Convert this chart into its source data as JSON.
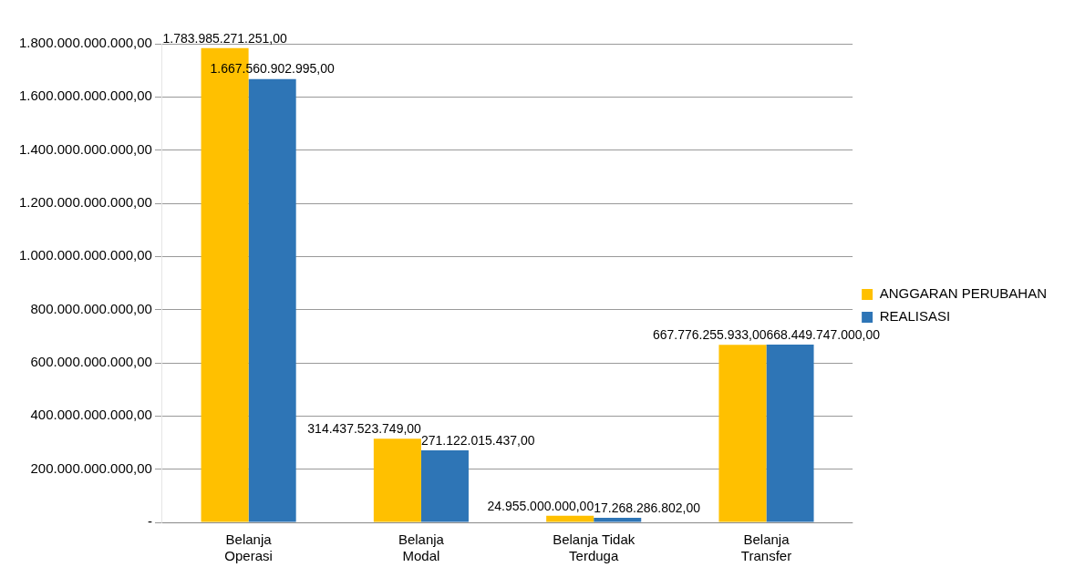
{
  "chart_data": {
    "type": "bar",
    "categories": [
      "Belanja Operasi",
      "Belanja Modal",
      "Belanja Tidak Terduga",
      "Belanja Transfer"
    ],
    "series": [
      {
        "name": "ANGGARAN PERUBAHAN",
        "color": "#ffc000",
        "values": [
          1783985271251,
          314437523749,
          24955000000,
          667776255933
        ],
        "value_labels": [
          "1.783.985.271.251,00",
          "314.437.523.749,00",
          "24.955.000.000,00",
          "667.776.255.933,00"
        ]
      },
      {
        "name": "REALISASI",
        "color": "#2e75b6",
        "values": [
          1667560902995,
          271122015437,
          17268286802,
          668449747000
        ],
        "value_labels": [
          "1.667.560.902.995,00",
          "271.122.015.437,00",
          "17.268.286.802,00",
          "668.449.747.000,00"
        ]
      }
    ],
    "ylim": [
      0,
      1800000000000
    ],
    "yticks": [
      {
        "value": 0,
        "label": "-"
      },
      {
        "value": 200000000000,
        "label": "200.000.000.000,00"
      },
      {
        "value": 400000000000,
        "label": "400.000.000.000,00"
      },
      {
        "value": 600000000000,
        "label": "600.000.000.000,00"
      },
      {
        "value": 800000000000,
        "label": "800.000.000.000,00"
      },
      {
        "value": 1000000000000,
        "label": "1.000.000.000.000,00"
      },
      {
        "value": 1200000000000,
        "label": "1.200.000.000.000,00"
      },
      {
        "value": 1400000000000,
        "label": "1.400.000.000.000,00"
      },
      {
        "value": 1600000000000,
        "label": "1.600.000.000.000,00"
      },
      {
        "value": 1800000000000,
        "label": "1.800.000.000.000,00"
      }
    ],
    "grid": "y",
    "legend": "right"
  }
}
